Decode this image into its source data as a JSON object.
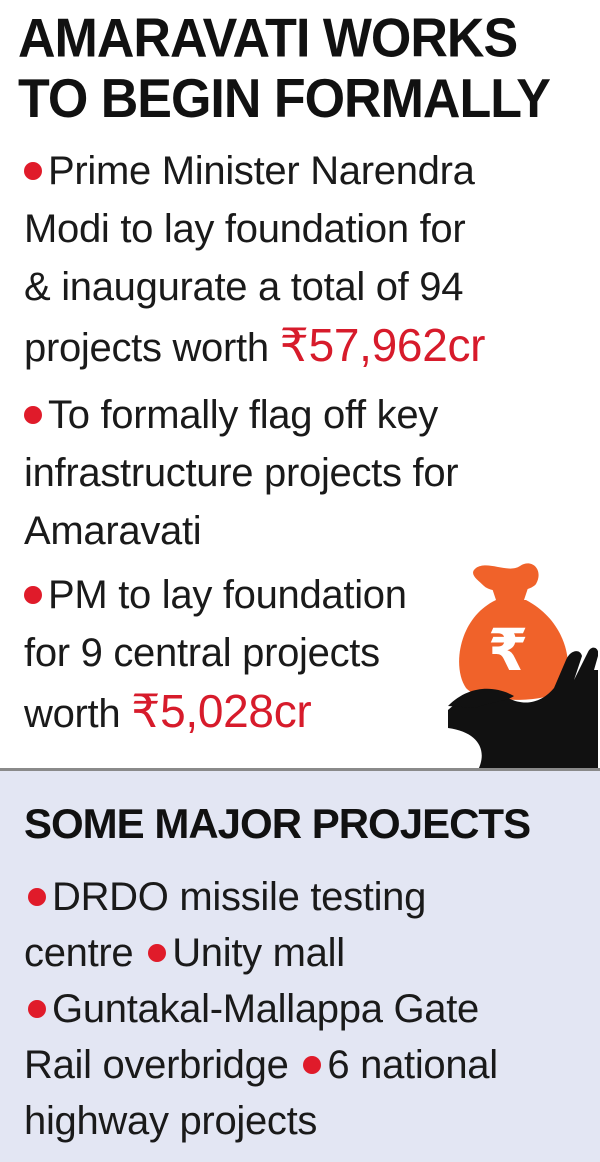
{
  "headline": {
    "line1": "AMARAVATI WORKS",
    "line2": "TO BEGIN FORMALLY"
  },
  "bullets": [
    {
      "lines": [
        "Prime Minister Narendra",
        "Modi to lay foundation for",
        "& inaugurate a total of 94",
        "projects worth "
      ],
      "amount": "₹57,962cr"
    },
    {
      "lines": [
        "To formally flag off key",
        "infrastructure projects for",
        "Amaravati"
      ]
    },
    {
      "lines": [
        "PM to lay foundation",
        "for 9 central projects",
        "worth "
      ],
      "amount": "₹5,028cr"
    }
  ],
  "major_projects": {
    "title": "SOME MAJOR PROJECTS",
    "items": [
      "DRDO missile testing",
      "centre",
      "Unity mall",
      "Guntakal-Mallappa Gate",
      "Rail overbridge",
      "6 national",
      "highway projects"
    ]
  },
  "illustration": {
    "icon": "money-bag-hand-icon",
    "symbol": "₹"
  },
  "colors": {
    "accent_red": "#e01b2a",
    "bag_orange": "#f0622a",
    "panel_bg": "#e3e6f3"
  }
}
